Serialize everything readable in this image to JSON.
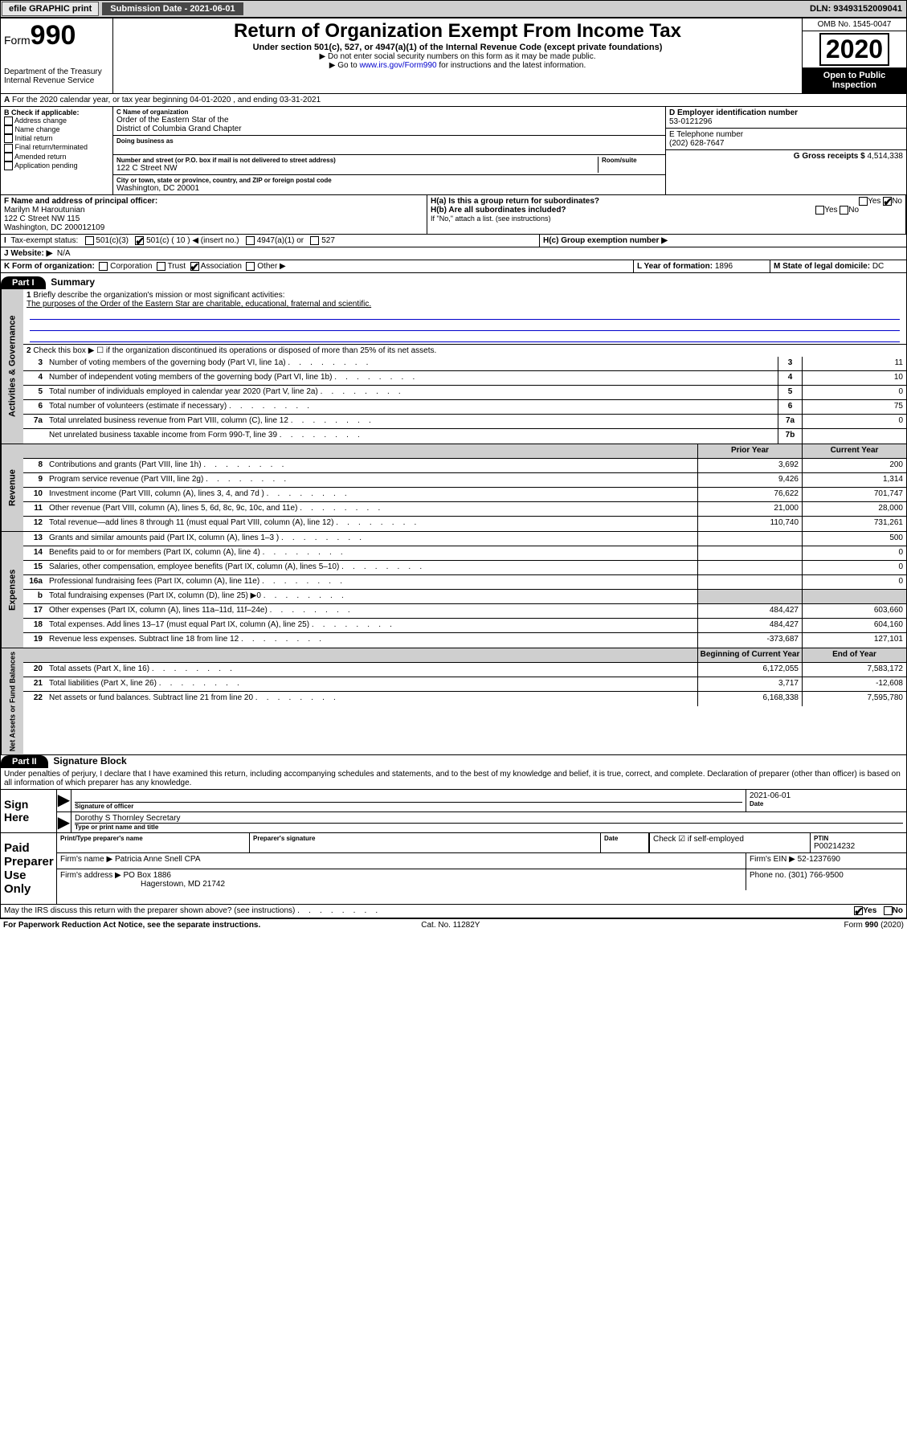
{
  "topbar": {
    "efile": "efile GRAPHIC print",
    "submission": "Submission Date - 2021-06-01",
    "dln": "DLN: 93493152009041"
  },
  "header": {
    "form": "Form",
    "form_num": "990",
    "dept": "Department of the Treasury\nInternal Revenue Service",
    "title": "Return of Organization Exempt From Income Tax",
    "sub1": "Under section 501(c), 527, or 4947(a)(1) of the Internal Revenue Code (except private foundations)",
    "sub2": "▶ Do not enter social security numbers on this form as it may be made public.",
    "sub3_pre": "▶ Go to ",
    "sub3_link": "www.irs.gov/Form990",
    "sub3_post": " for instructions and the latest information.",
    "omb": "OMB No. 1545-0047",
    "year": "2020",
    "open": "Open to Public Inspection"
  },
  "period": "For the 2020 calendar year, or tax year beginning 04-01-2020    , and ending 03-31-2021",
  "boxB": {
    "label": "B Check if applicable:",
    "items": [
      "Address change",
      "Name change",
      "Initial return",
      "Final return/terminated",
      "Amended return",
      "Application pending"
    ]
  },
  "boxC": {
    "name_label": "C Name of organization",
    "name": "Order of the Eastern Star of the\nDistrict of Columbia Grand Chapter",
    "dba_label": "Doing business as",
    "addr_label": "Number and street (or P.O. box if mail is not delivered to street address)",
    "room_label": "Room/suite",
    "addr": "122 C Street NW",
    "city_label": "City or town, state or province, country, and ZIP or foreign postal code",
    "city": "Washington, DC  20001"
  },
  "boxD": {
    "label": "D Employer identification number",
    "val": "53-0121296"
  },
  "boxE": {
    "label": "E Telephone number",
    "val": "(202) 628-7647"
  },
  "boxG": {
    "label": "G Gross receipts $",
    "val": "4,514,338"
  },
  "boxF": {
    "label": "F  Name and address of principal officer:",
    "name": "Marilyn M Haroutunian",
    "addr1": "122 C Street NW 115",
    "addr2": "Washington, DC  200012109"
  },
  "boxH": {
    "a": "H(a)  Is this a group return for subordinates?",
    "b": "H(b)  Are all subordinates included?",
    "b_note": "If \"No,\" attach a list. (see instructions)",
    "c": "H(c)  Group exemption number ▶",
    "yes": "Yes",
    "no": "No"
  },
  "boxI": {
    "label": "Tax-exempt status:",
    "o1": "501(c)(3)",
    "o2": "501(c) ( 10 ) ◀ (insert no.)",
    "o3": "4947(a)(1) or",
    "o4": "527"
  },
  "boxJ": {
    "label": "J   Website: ▶",
    "val": "N/A"
  },
  "boxK": {
    "label": "K Form of organization:",
    "o1": "Corporation",
    "o2": "Trust",
    "o3": "Association",
    "o4": "Other ▶"
  },
  "boxL": {
    "label": "L Year of formation:",
    "val": "1896"
  },
  "boxM": {
    "label": "M State of legal domicile:",
    "val": "DC"
  },
  "part1": {
    "hdr": "Part I",
    "title": "Summary",
    "q1": "Briefly describe the organization's mission or most significant activities:",
    "q1_ans": "The purposes of the Order of the Eastern Star are charitable, educational, fraternal and scientific.",
    "q2": "Check this box ▶ ☐  if the organization discontinued its operations or disposed of more than 25% of its net assets.",
    "lines_gov": [
      {
        "n": "3",
        "t": "Number of voting members of the governing body (Part VI, line 1a)",
        "b": "3",
        "v": "11"
      },
      {
        "n": "4",
        "t": "Number of independent voting members of the governing body (Part VI, line 1b)",
        "b": "4",
        "v": "10"
      },
      {
        "n": "5",
        "t": "Total number of individuals employed in calendar year 2020 (Part V, line 2a)",
        "b": "5",
        "v": "0"
      },
      {
        "n": "6",
        "t": "Total number of volunteers (estimate if necessary)",
        "b": "6",
        "v": "75"
      },
      {
        "n": "7a",
        "t": "Total unrelated business revenue from Part VIII, column (C), line 12",
        "b": "7a",
        "v": "0"
      },
      {
        "n": "",
        "t": "Net unrelated business taxable income from Form 990-T, line 39",
        "b": "7b",
        "v": ""
      }
    ],
    "col_prior": "Prior Year",
    "col_current": "Current Year",
    "lines_rev": [
      {
        "n": "8",
        "t": "Contributions and grants (Part VIII, line 1h)",
        "p": "3,692",
        "c": "200"
      },
      {
        "n": "9",
        "t": "Program service revenue (Part VIII, line 2g)",
        "p": "9,426",
        "c": "1,314"
      },
      {
        "n": "10",
        "t": "Investment income (Part VIII, column (A), lines 3, 4, and 7d )",
        "p": "76,622",
        "c": "701,747"
      },
      {
        "n": "11",
        "t": "Other revenue (Part VIII, column (A), lines 5, 6d, 8c, 9c, 10c, and 11e)",
        "p": "21,000",
        "c": "28,000"
      },
      {
        "n": "12",
        "t": "Total revenue—add lines 8 through 11 (must equal Part VIII, column (A), line 12)",
        "p": "110,740",
        "c": "731,261"
      }
    ],
    "lines_exp": [
      {
        "n": "13",
        "t": "Grants and similar amounts paid (Part IX, column (A), lines 1–3 )",
        "p": "",
        "c": "500"
      },
      {
        "n": "14",
        "t": "Benefits paid to or for members (Part IX, column (A), line 4)",
        "p": "",
        "c": "0"
      },
      {
        "n": "15",
        "t": "Salaries, other compensation, employee benefits (Part IX, column (A), lines 5–10)",
        "p": "",
        "c": "0"
      },
      {
        "n": "16a",
        "t": "Professional fundraising fees (Part IX, column (A), line 11e)",
        "p": "",
        "c": "0"
      },
      {
        "n": "b",
        "t": "Total fundraising expenses (Part IX, column (D), line 25) ▶0",
        "p": "shaded",
        "c": "shaded"
      },
      {
        "n": "17",
        "t": "Other expenses (Part IX, column (A), lines 11a–11d, 11f–24e)",
        "p": "484,427",
        "c": "603,660"
      },
      {
        "n": "18",
        "t": "Total expenses. Add lines 13–17 (must equal Part IX, column (A), line 25)",
        "p": "484,427",
        "c": "604,160"
      },
      {
        "n": "19",
        "t": "Revenue less expenses. Subtract line 18 from line 12",
        "p": "-373,687",
        "c": "127,101"
      }
    ],
    "col_begin": "Beginning of Current Year",
    "col_end": "End of Year",
    "lines_net": [
      {
        "n": "20",
        "t": "Total assets (Part X, line 16)",
        "p": "6,172,055",
        "c": "7,583,172"
      },
      {
        "n": "21",
        "t": "Total liabilities (Part X, line 26)",
        "p": "3,717",
        "c": "-12,608"
      },
      {
        "n": "22",
        "t": "Net assets or fund balances. Subtract line 21 from line 20",
        "p": "6,168,338",
        "c": "7,595,780"
      }
    ],
    "vlabels": [
      "Activities & Governance",
      "Revenue",
      "Expenses",
      "Net Assets or Fund Balances"
    ]
  },
  "part2": {
    "hdr": "Part II",
    "title": "Signature Block",
    "perjury": "Under penalties of perjury, I declare that I have examined this return, including accompanying schedules and statements, and to the best of my knowledge and belief, it is true, correct, and complete. Declaration of preparer (other than officer) is based on all information of which preparer has any knowledge.",
    "sign_here": "Sign Here",
    "sig_officer": "Signature of officer",
    "date": "Date",
    "date_val": "2021-06-01",
    "officer_name": "Dorothy S Thornley  Secretary",
    "type_name": "Type or print name and title",
    "paid": "Paid Preparer Use Only",
    "prep_name_label": "Print/Type preparer's name",
    "prep_sig_label": "Preparer's signature",
    "check_self": "Check ☑ if self-employed",
    "ptin_label": "PTIN",
    "ptin": "P00214232",
    "firm_name_label": "Firm's name    ▶",
    "firm_name": "Patricia Anne Snell CPA",
    "firm_ein_label": "Firm's EIN ▶",
    "firm_ein": "52-1237690",
    "firm_addr_label": "Firm's address ▶",
    "firm_addr": "PO Box 1886",
    "firm_city": "Hagerstown, MD  21742",
    "phone_label": "Phone no.",
    "phone": "(301) 766-9500",
    "discuss": "May the IRS discuss this return with the preparer shown above? (see instructions)",
    "yes": "Yes",
    "no": "No"
  },
  "footer": {
    "left": "For Paperwork Reduction Act Notice, see the separate instructions.",
    "mid": "Cat. No. 11282Y",
    "right": "Form 990 (2020)"
  }
}
